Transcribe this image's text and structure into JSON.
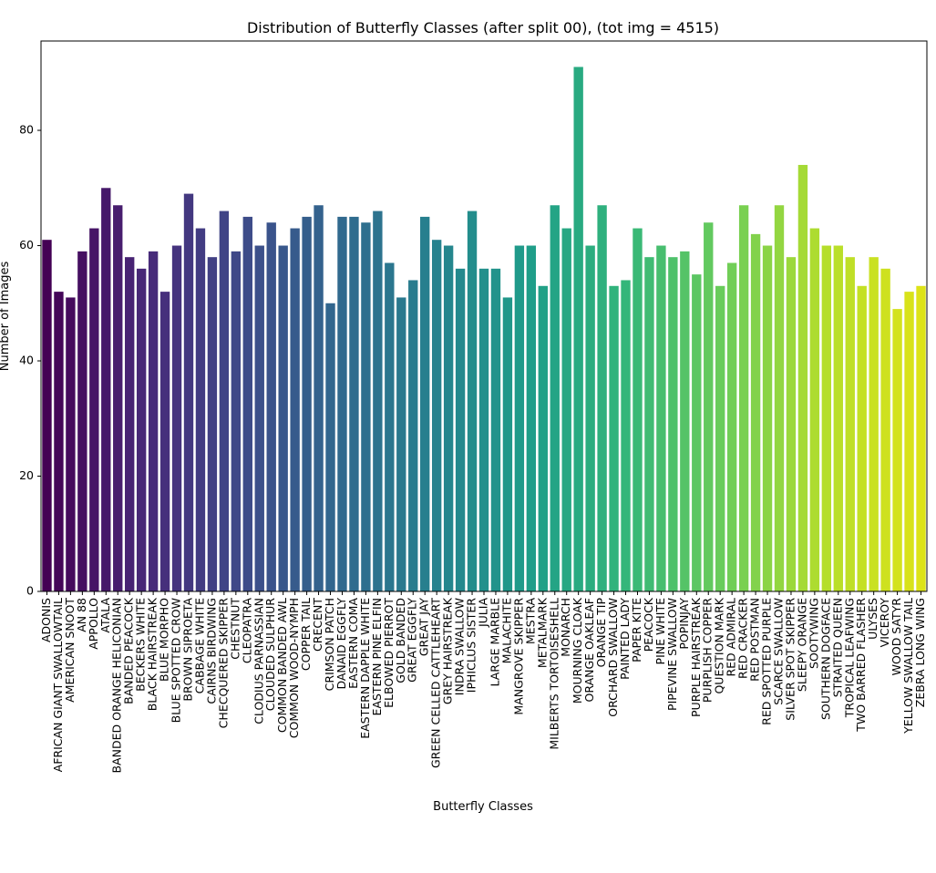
{
  "chart_data": {
    "type": "bar",
    "title": "Distribution of Butterfly Classes (after split 00), (tot img = 4515)",
    "xlabel": "Butterfly Classes",
    "ylabel": "Number of Images",
    "ylim": [
      0,
      95.5
    ],
    "yticks": [
      "0",
      "20",
      "40",
      "60",
      "80"
    ],
    "grid": false,
    "colormap": "viridis",
    "color_start": "#440154",
    "color_end": "#dde318",
    "categories": [
      "ADONIS",
      "AFRICAN GIANT SWALLOWTAIL",
      "AMERICAN SNOOT",
      "AN 88",
      "APPOLLO",
      "ATALA",
      "BANDED ORANGE HELICONIAN",
      "BANDED PEACOCK",
      "BECKERS WHITE",
      "BLACK HAIRSTREAK",
      "BLUE MORPHO",
      "BLUE SPOTTED CROW",
      "BROWN SIPROETA",
      "CABBAGE WHITE",
      "CAIRNS BIRDWING",
      "CHECQUERED SKIPPER",
      "CHESTNUT",
      "CLEOPATRA",
      "CLODIUS PARNASSIAN",
      "CLOUDED SULPHUR",
      "COMMON BANDED AWL",
      "COMMON WOOD-NYMPH",
      "COPPER TAIL",
      "CRECENT",
      "CRIMSON PATCH",
      "DANAID EGGFLY",
      "EASTERN COMA",
      "EASTERN DAPPLE WHITE",
      "EASTERN PINE ELFIN",
      "ELBOWED PIERROT",
      "GOLD BANDED",
      "GREAT EGGFLY",
      "GREAT JAY",
      "GREEN CELLED CATTLEHEART",
      "GREY HAIRSTREAK",
      "INDRA SWALLOW",
      "IPHICLUS SISTER",
      "JULIA",
      "LARGE MARBLE",
      "MALACHITE",
      "MANGROVE SKIPPER",
      "MESTRA",
      "METALMARK",
      "MILBERTS TORTOISESHELL",
      "MONARCH",
      "MOURNING CLOAK",
      "ORANGE OAKLEAF",
      "ORANGE TIP",
      "ORCHARD SWALLOW",
      "PAINTED LADY",
      "PAPER KITE",
      "PEACOCK",
      "PINE WHITE",
      "PIPEVINE SWALLOW",
      "POPINJAY",
      "PURPLE HAIRSTREAK",
      "PURPLISH COPPER",
      "QUESTION MARK",
      "RED ADMIRAL",
      "RED CRACKER",
      "RED POSTMAN",
      "RED SPOTTED PURPLE",
      "SCARCE SWALLOW",
      "SILVER SPOT SKIPPER",
      "SLEEPY ORANGE",
      "SOOTYWING",
      "SOUTHERN DOGFACE",
      "STRAITED QUEEN",
      "TROPICAL LEAFWING",
      "TWO BARRED FLASHER",
      "ULYSES",
      "VICEROY",
      "WOOD SATYR",
      "YELLOW SWALLOW TAIL",
      "ZEBRA LONG WING"
    ],
    "values": [
      61,
      52,
      51,
      59,
      63,
      70,
      67,
      58,
      56,
      59,
      52,
      60,
      69,
      63,
      58,
      66,
      59,
      65,
      60,
      64,
      60,
      63,
      65,
      67,
      50,
      65,
      65,
      64,
      66,
      57,
      51,
      54,
      65,
      61,
      60,
      56,
      66,
      56,
      56,
      51,
      60,
      60,
      53,
      67,
      63,
      91,
      60,
      67,
      53,
      54,
      63,
      58,
      60,
      58,
      59,
      55,
      64,
      53,
      57,
      67,
      62,
      60,
      67,
      58,
      74,
      63,
      60,
      60,
      58,
      53,
      58,
      56,
      49,
      52,
      53
    ]
  }
}
